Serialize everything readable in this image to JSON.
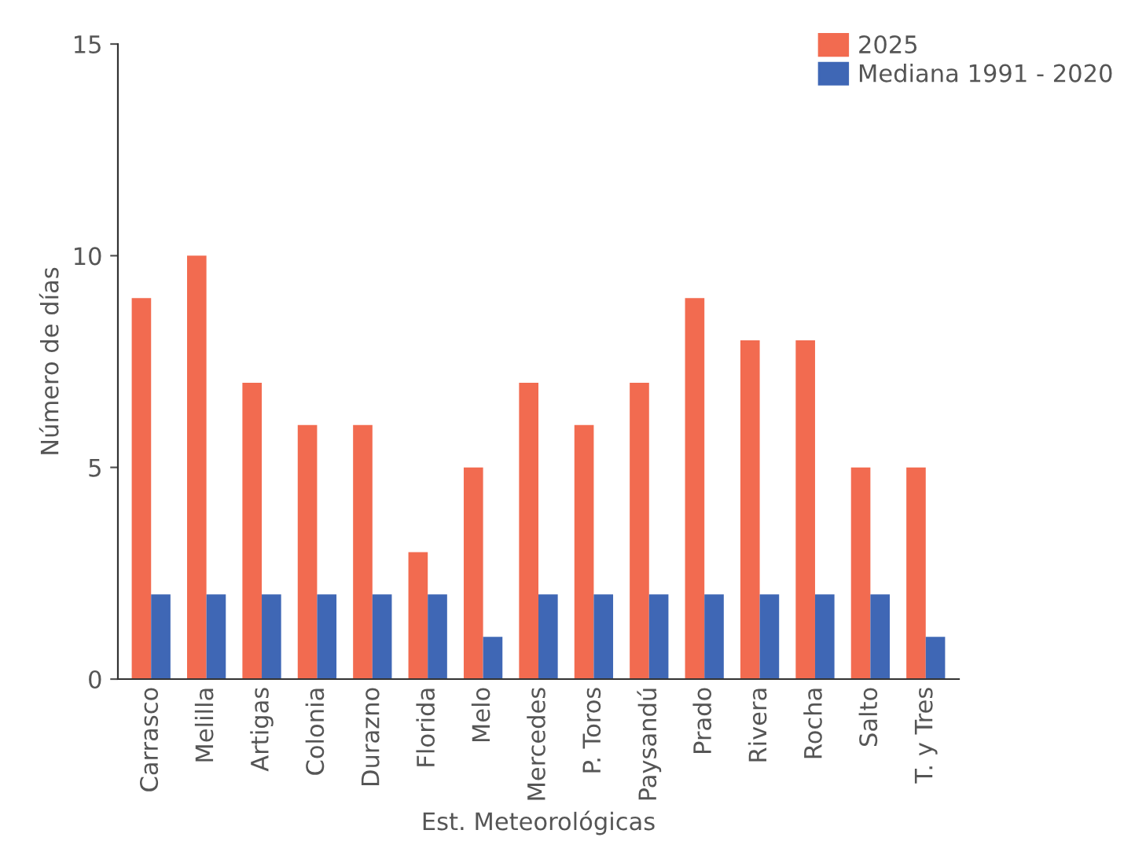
{
  "chart_data": {
    "type": "bar",
    "xlabel": "Est. Meteorológicas",
    "ylabel": "Número de días",
    "categories": [
      "Carrasco",
      "Melilla",
      "Artigas",
      "Colonia",
      "Durazno",
      "Florida",
      "Melo",
      "Mercedes",
      "P. Toros",
      "Paysandú",
      "Prado",
      "Rivera",
      "Rocha",
      "Salto",
      "T. y Tres"
    ],
    "series": [
      {
        "name": "2025",
        "color": "#f26b50",
        "values": [
          9,
          10,
          7,
          6,
          6,
          3,
          5,
          7,
          6,
          7,
          9,
          8,
          8,
          5,
          5
        ]
      },
      {
        "name": "Mediana 1991 - 2020",
        "color": "#3f67b5",
        "values": [
          2,
          2,
          2,
          2,
          2,
          2,
          1,
          2,
          2,
          2,
          2,
          2,
          2,
          2,
          1
        ]
      }
    ],
    "ylim": [
      0,
      15
    ],
    "yticks": [
      0,
      5,
      10,
      15
    ],
    "grid": false,
    "legend": "top right"
  }
}
